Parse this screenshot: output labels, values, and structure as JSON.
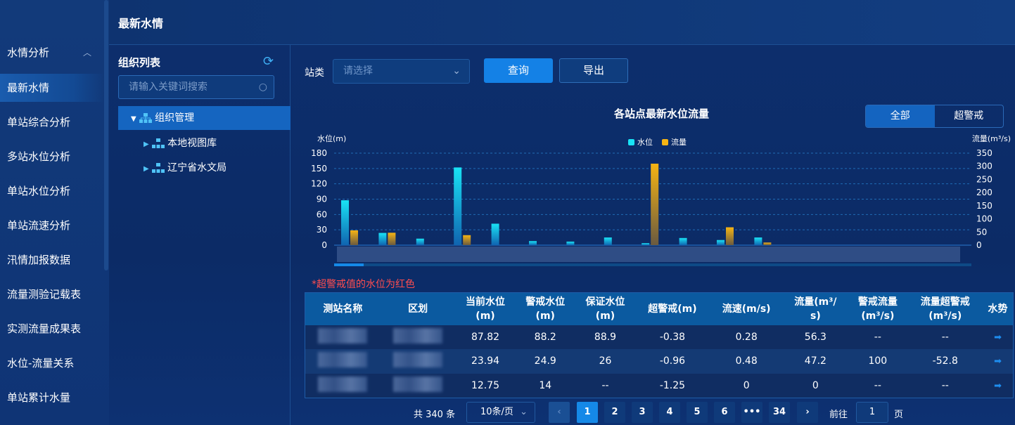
{
  "sidebar": {
    "group": "水情分析",
    "items": [
      {
        "label": "最新水情",
        "active": true
      },
      {
        "label": "单站综合分析"
      },
      {
        "label": "多站水位分析"
      },
      {
        "label": "单站水位分析"
      },
      {
        "label": "单站流速分析"
      },
      {
        "label": "汛情加报数据"
      },
      {
        "label": "流量测验记载表"
      },
      {
        "label": "实测流量成果表"
      },
      {
        "label": "水位-流量关系"
      },
      {
        "label": "单站累计水量"
      }
    ]
  },
  "header": {
    "title": "最新水情"
  },
  "tree": {
    "title": "组织列表",
    "search_placeholder": "请输入关键词搜索",
    "root": "组织管理",
    "children": [
      "本地视图库",
      "辽宁省水文局"
    ]
  },
  "filter": {
    "label": "站类",
    "placeholder": "请选择",
    "query": "查询",
    "export": "导出"
  },
  "toggle": {
    "all": "全部",
    "over": "超警戒",
    "selected": "全部"
  },
  "colors": {
    "water": "#19e3f5",
    "flow": "#f5b414",
    "accent": "#1481e6",
    "warning": "#ff4d4f"
  },
  "chart_data": {
    "type": "bar",
    "title": "各站点最新水位流量",
    "ylabel": "水位(m)",
    "y2label": "流量(m³/s)",
    "ylim": [
      0,
      180
    ],
    "y2lim": [
      0,
      350
    ],
    "yticks": [
      0,
      30,
      60,
      90,
      120,
      150,
      180
    ],
    "y2ticks": [
      0,
      50,
      100,
      150,
      200,
      250,
      300,
      350
    ],
    "grid": true,
    "legend": "top-center",
    "categories": [
      "",
      "",
      "",
      "",
      "",
      "",
      "",
      "",
      "",
      "",
      "",
      ""
    ],
    "series": [
      {
        "name": "水位",
        "axis": "left",
        "values": [
          87.82,
          23.94,
          12.75,
          152,
          42,
          8,
          7,
          15,
          4,
          14,
          10,
          15
        ]
      },
      {
        "name": "流量",
        "axis": "right",
        "values": [
          56.3,
          47.2,
          0,
          38,
          0,
          0,
          0,
          0,
          310,
          0,
          68,
          10
        ]
      }
    ]
  },
  "note": "*超警戒值的水位为红色",
  "table": {
    "headers": [
      [
        "测站名称"
      ],
      [
        "区划"
      ],
      [
        "当前水位",
        "(m)"
      ],
      [
        "警戒水位",
        "(m)"
      ],
      [
        "保证水位",
        "(m)"
      ],
      [
        "超警戒(m)"
      ],
      [
        "流速(m/s)"
      ],
      [
        "流量(m³/",
        "s)"
      ],
      [
        "警戒流量",
        "(m³/s)"
      ],
      [
        "流量超警戒",
        "(m³/s)"
      ],
      [
        "水势"
      ]
    ],
    "rows": [
      [
        "87.82",
        "88.2",
        "88.9",
        "-0.38",
        "0.28",
        "56.3",
        "--",
        "--"
      ],
      [
        "23.94",
        "24.9",
        "26",
        "-0.96",
        "0.48",
        "47.2",
        "100",
        "-52.8"
      ],
      [
        "12.75",
        "14",
        "--",
        "-1.25",
        "0",
        "0",
        "--",
        "--"
      ]
    ],
    "trend_icon": "arrow-right-icon"
  },
  "pager": {
    "total": "共 340 条",
    "size": "10条/页",
    "pages": [
      "1",
      "2",
      "3",
      "4",
      "5",
      "6",
      "•••",
      "34"
    ],
    "current": "1",
    "goto_label": "前往",
    "goto_value": "1",
    "page_suffix": "页"
  }
}
